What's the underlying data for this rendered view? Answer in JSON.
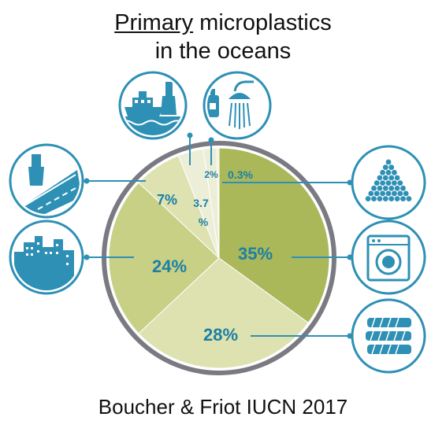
{
  "title": {
    "line1_underlined": "Primary",
    "line1_rest": " microplastics",
    "line2": "in the oceans"
  },
  "source": "Boucher & Friot IUCN 2017",
  "colors": {
    "teal": "#2e90b5",
    "dark_green": "#aab85a",
    "mid_green": "#c7d084",
    "light_green": "#dde2b0",
    "pale": "#eceed7",
    "ring": "#7a7a82"
  },
  "chart_data": {
    "type": "pie",
    "title": "Primary microplastics in the oceans",
    "slices": [
      {
        "value": 35,
        "label": "35%",
        "icon": "washing-machine-icon"
      },
      {
        "value": 28,
        "label": "28%",
        "icon": "tires-icon"
      },
      {
        "value": 24,
        "label": "24%",
        "icon": "city-dust-icon"
      },
      {
        "value": 7,
        "label": "7%",
        "icon": "road-markings-icon"
      },
      {
        "value": 3.7,
        "label": "3.7 %",
        "icon": "marine-coatings-icon"
      },
      {
        "value": 2,
        "label": "2%",
        "icon": "personal-care-icon"
      },
      {
        "value": 0.3,
        "label": "0.3%",
        "icon": "plastic-pellets-icon"
      }
    ]
  }
}
